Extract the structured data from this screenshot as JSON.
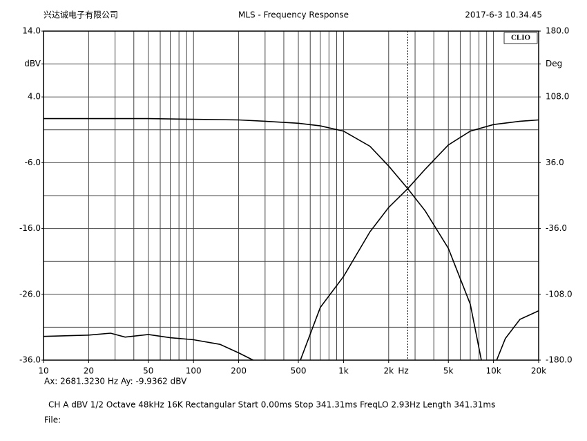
{
  "chart_data": {
    "type": "line",
    "header_left": "兴达诚电子有限公司",
    "title": "MLS - Frequency Response",
    "header_right": "2017-6-3 10.34.45",
    "badge": "CLIO",
    "xlabel": "Hz",
    "log_x": true,
    "xlim": [
      10,
      20000
    ],
    "xticks": [
      10,
      20,
      50,
      100,
      200,
      500,
      {
        "value": 1000,
        "label": "1k"
      },
      {
        "value": 2000,
        "label": "2k"
      },
      {
        "value": 5000,
        "label": "5k"
      },
      {
        "value": 10000,
        "label": "10k"
      },
      {
        "value": 20000,
        "label": "20k"
      }
    ],
    "xgrid": [
      10,
      20,
      30,
      40,
      50,
      60,
      70,
      80,
      90,
      100,
      200,
      300,
      400,
      500,
      600,
      700,
      800,
      900,
      1000,
      2000,
      3000,
      4000,
      5000,
      6000,
      7000,
      8000,
      9000,
      10000,
      20000
    ],
    "ylim": [
      -36,
      14
    ],
    "yticks": [
      {
        "value": 14,
        "label": "14.0"
      },
      {
        "value": 9,
        "label": "dBV"
      },
      {
        "value": 4,
        "label": "4.0"
      },
      {
        "value": -6,
        "label": "-6.0"
      },
      {
        "value": -16,
        "label": "-16.0"
      },
      {
        "value": -26,
        "label": "-26.0"
      },
      {
        "value": -36,
        "label": "-36.0"
      }
    ],
    "ygrid": [
      14,
      9,
      4,
      -1,
      -6,
      -11,
      -16,
      -21,
      -26,
      -31,
      -36
    ],
    "y2lim": [
      -180,
      180
    ],
    "y2ticks": [
      {
        "value": 180,
        "label": "180.0"
      },
      {
        "value": 144,
        "label": "Deg"
      },
      {
        "value": 108,
        "label": "108.0"
      },
      {
        "value": 36,
        "label": "36.0"
      },
      {
        "value": -36,
        "label": "-36.0"
      },
      {
        "value": -108,
        "label": "-108.0"
      },
      {
        "value": -180,
        "label": "-180.0"
      }
    ],
    "grid": true,
    "cursor_x": 2681.323,
    "series": [
      {
        "color": "#000000",
        "x": [
          10,
          20,
          50,
          100,
          200,
          300,
          500,
          700,
          1000,
          1500,
          2000,
          2681.323,
          3500,
          5000,
          7000,
          8300
        ],
        "values": [
          0.7,
          0.7,
          0.7,
          0.6,
          0.5,
          0.3,
          0.0,
          -0.4,
          -1.2,
          -3.5,
          -6.5,
          -9.94,
          -13.3,
          -19.0,
          -27.5,
          -36.0
        ]
      },
      {
        "color": "#000000",
        "x": [
          516,
          700,
          1000,
          1500,
          2000,
          2681.323,
          3500,
          5000,
          7000,
          10000,
          15000,
          20000
        ],
        "values": [
          -36.0,
          -28.0,
          -23.3,
          -16.5,
          -12.8,
          -9.94,
          -7.0,
          -3.3,
          -1.2,
          -0.2,
          0.3,
          0.5
        ]
      },
      {
        "color": "#000000",
        "x": [
          10,
          20,
          28,
          35,
          50,
          70,
          100,
          150,
          200,
          250
        ],
        "values": [
          -32.4,
          -32.2,
          -31.9,
          -32.5,
          -32.1,
          -32.6,
          -32.9,
          -33.6,
          -34.9,
          -36.0
        ]
      },
      {
        "color": "#000000",
        "x": [
          10500,
          12000,
          15000,
          20000
        ],
        "values": [
          -36.0,
          -32.7,
          -29.8,
          -28.5
        ]
      }
    ],
    "cursor_text": "Ax: 2681.3230 Hz   Ay: -9.9362 dBV",
    "settings_text": "CH A   dBV   1/2 Octave   48kHz   16K   Rectangular   Start 0.00ms   Stop 341.31ms   FreqLO 2.93Hz   Length 341.31ms",
    "file_text": "File:"
  }
}
